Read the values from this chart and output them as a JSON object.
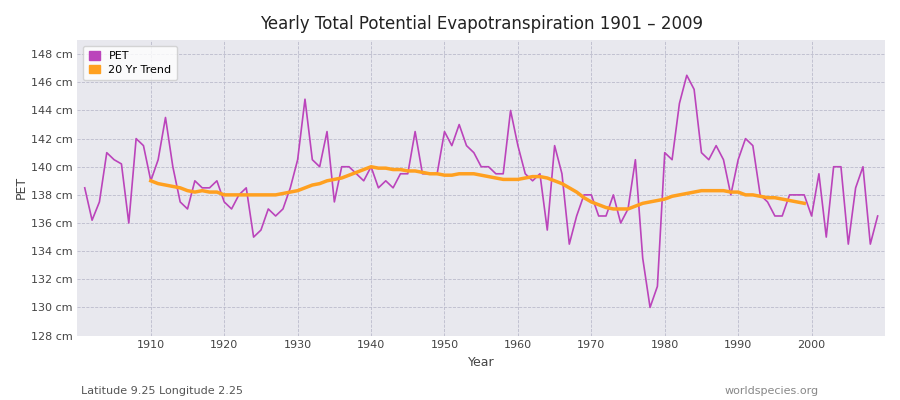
{
  "title": "Yearly Total Potential Evapotranspiration 1901 – 2009",
  "xlabel": "Year",
  "ylabel": "PET",
  "subtitle_left": "Latitude 9.25 Longitude 2.25",
  "subtitle_right": "worldspecies.org",
  "pet_color": "#bb44bb",
  "trend_color": "#ffa020",
  "bg_color": "#ffffff",
  "plot_bg_color": "#e8e8ee",
  "ylim": [
    128,
    149
  ],
  "yticks": [
    128,
    130,
    132,
    134,
    136,
    138,
    140,
    142,
    144,
    146,
    148
  ],
  "xlim": [
    1900,
    2010
  ],
  "xticks": [
    1910,
    1920,
    1930,
    1940,
    1950,
    1960,
    1970,
    1980,
    1990,
    2000
  ],
  "years": [
    1901,
    1902,
    1903,
    1904,
    1905,
    1906,
    1907,
    1908,
    1909,
    1910,
    1911,
    1912,
    1913,
    1914,
    1915,
    1916,
    1917,
    1918,
    1919,
    1920,
    1921,
    1922,
    1923,
    1924,
    1925,
    1926,
    1927,
    1928,
    1929,
    1930,
    1931,
    1932,
    1933,
    1934,
    1935,
    1936,
    1937,
    1938,
    1939,
    1940,
    1941,
    1942,
    1943,
    1944,
    1945,
    1946,
    1947,
    1948,
    1949,
    1950,
    1951,
    1952,
    1953,
    1954,
    1955,
    1956,
    1957,
    1958,
    1959,
    1960,
    1961,
    1962,
    1963,
    1964,
    1965,
    1966,
    1967,
    1968,
    1969,
    1970,
    1971,
    1972,
    1973,
    1974,
    1975,
    1976,
    1977,
    1978,
    1979,
    1980,
    1981,
    1982,
    1983,
    1984,
    1985,
    1986,
    1987,
    1988,
    1989,
    1990,
    1991,
    1992,
    1993,
    1994,
    1995,
    1996,
    1997,
    1998,
    1999,
    2000,
    2001,
    2002,
    2003,
    2004,
    2005,
    2006,
    2007,
    2008,
    2009
  ],
  "pet_values": [
    138.5,
    136.2,
    137.5,
    141.0,
    140.5,
    140.2,
    136.0,
    142.0,
    141.5,
    139.0,
    140.5,
    143.5,
    140.0,
    137.5,
    137.0,
    139.0,
    138.5,
    138.5,
    139.0,
    137.5,
    137.0,
    138.0,
    138.5,
    135.0,
    135.5,
    137.0,
    136.5,
    137.0,
    138.5,
    140.5,
    144.8,
    140.5,
    140.0,
    142.5,
    137.5,
    140.0,
    140.0,
    139.5,
    139.0,
    140.0,
    138.5,
    139.0,
    138.5,
    139.5,
    139.5,
    142.5,
    139.5,
    139.5,
    139.5,
    142.5,
    141.5,
    143.0,
    141.5,
    141.0,
    140.0,
    140.0,
    139.5,
    139.5,
    144.0,
    141.5,
    139.5,
    139.0,
    139.5,
    135.5,
    141.5,
    139.5,
    134.5,
    136.5,
    138.0,
    138.0,
    136.5,
    136.5,
    138.0,
    136.0,
    137.0,
    140.5,
    133.5,
    130.0,
    131.5,
    141.0,
    140.5,
    144.5,
    146.5,
    145.5,
    141.0,
    140.5,
    141.5,
    140.5,
    138.0,
    140.5,
    142.0,
    141.5,
    138.0,
    137.5,
    136.5,
    136.5,
    138.0,
    138.0,
    138.0,
    136.5,
    139.5,
    135.0,
    140.0,
    140.0,
    134.5,
    138.5,
    140.0,
    134.5,
    136.5
  ],
  "trend_values": [
    null,
    null,
    null,
    null,
    null,
    null,
    null,
    null,
    null,
    139.0,
    138.8,
    138.7,
    138.6,
    138.5,
    138.3,
    138.2,
    138.3,
    138.2,
    138.2,
    138.0,
    138.0,
    138.0,
    138.0,
    138.0,
    138.0,
    138.0,
    138.0,
    138.1,
    138.2,
    138.3,
    138.5,
    138.7,
    138.8,
    139.0,
    139.1,
    139.2,
    139.4,
    139.6,
    139.8,
    140.0,
    139.9,
    139.9,
    139.8,
    139.8,
    139.7,
    139.7,
    139.6,
    139.5,
    139.5,
    139.4,
    139.4,
    139.5,
    139.5,
    139.5,
    139.4,
    139.3,
    139.2,
    139.1,
    139.1,
    139.1,
    139.2,
    139.3,
    139.3,
    139.2,
    139.0,
    138.8,
    138.5,
    138.2,
    137.8,
    137.5,
    137.3,
    137.1,
    137.0,
    137.0,
    137.0,
    137.2,
    137.4,
    137.5,
    137.6,
    137.7,
    137.9,
    138.0,
    138.1,
    138.2,
    138.3,
    138.3,
    138.3,
    138.3,
    138.2,
    138.2,
    138.0,
    138.0,
    137.9,
    137.8,
    137.8,
    137.7,
    137.6,
    137.5,
    137.4
  ]
}
